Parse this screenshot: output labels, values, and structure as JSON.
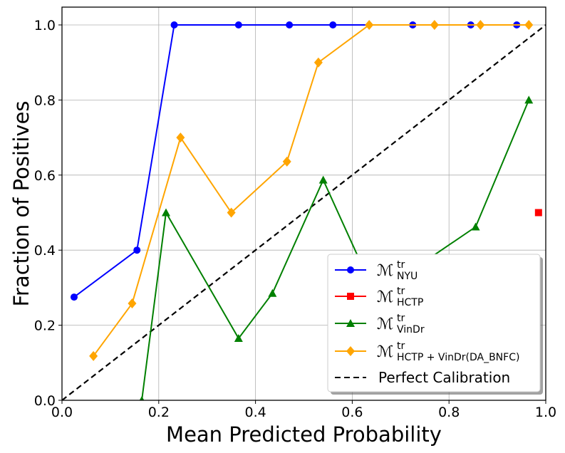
{
  "chart_data": {
    "type": "line",
    "title": "",
    "xlabel": "Mean Predicted Probability",
    "ylabel": "Fraction of Positives",
    "xlim": [
      0.0,
      1.0
    ],
    "ylim": [
      0.0,
      1.05
    ],
    "grid": true,
    "legend_position": "lower-right",
    "x_ticks": [
      "0.0",
      "0.2",
      "0.4",
      "0.6",
      "0.8",
      "1.0"
    ],
    "y_ticks": [
      "0.0",
      "0.2",
      "0.4",
      "0.6",
      "0.8",
      "1.0"
    ],
    "series": [
      {
        "base": "ℳ",
        "sup": "tr",
        "sub": "NYU",
        "color": "#0000ff",
        "marker": "circle",
        "x": [
          0.025,
          0.155,
          0.232,
          0.365,
          0.47,
          0.56,
          0.725,
          0.845,
          0.94
        ],
        "y": [
          0.275,
          0.4,
          1.0,
          1.0,
          1.0,
          1.0,
          1.0,
          1.0,
          1.0
        ]
      },
      {
        "base": "ℳ",
        "sup": "tr",
        "sub": "HCTP",
        "color": "#ff0000",
        "marker": "square",
        "x": [
          0.985
        ],
        "y": [
          0.5
        ]
      },
      {
        "base": "ℳ",
        "sup": "tr",
        "sub": "VinDr",
        "color": "#008000",
        "marker": "triangle",
        "x": [
          0.165,
          0.215,
          0.365,
          0.435,
          0.54,
          0.62,
          0.75,
          0.855,
          0.965
        ],
        "y": [
          0.0,
          0.5,
          0.165,
          0.285,
          0.587,
          0.36,
          0.37,
          0.462,
          0.8
        ]
      },
      {
        "base": "ℳ",
        "sup": "tr",
        "sub": "HCTP + VinDr(DA_BNFC)",
        "color": "#ffa500",
        "marker": "diamond",
        "x": [
          0.065,
          0.145,
          0.245,
          0.35,
          0.465,
          0.53,
          0.635,
          0.77,
          0.865,
          0.965
        ],
        "y": [
          0.118,
          0.258,
          0.7,
          0.5,
          0.636,
          0.9,
          1.0,
          1.0,
          1.0,
          1.0
        ]
      },
      {
        "name": "Perfect Calibration",
        "color": "#000000",
        "dashed": true,
        "x": [
          0.0,
          1.0
        ],
        "y": [
          0.0,
          1.0
        ]
      }
    ]
  }
}
